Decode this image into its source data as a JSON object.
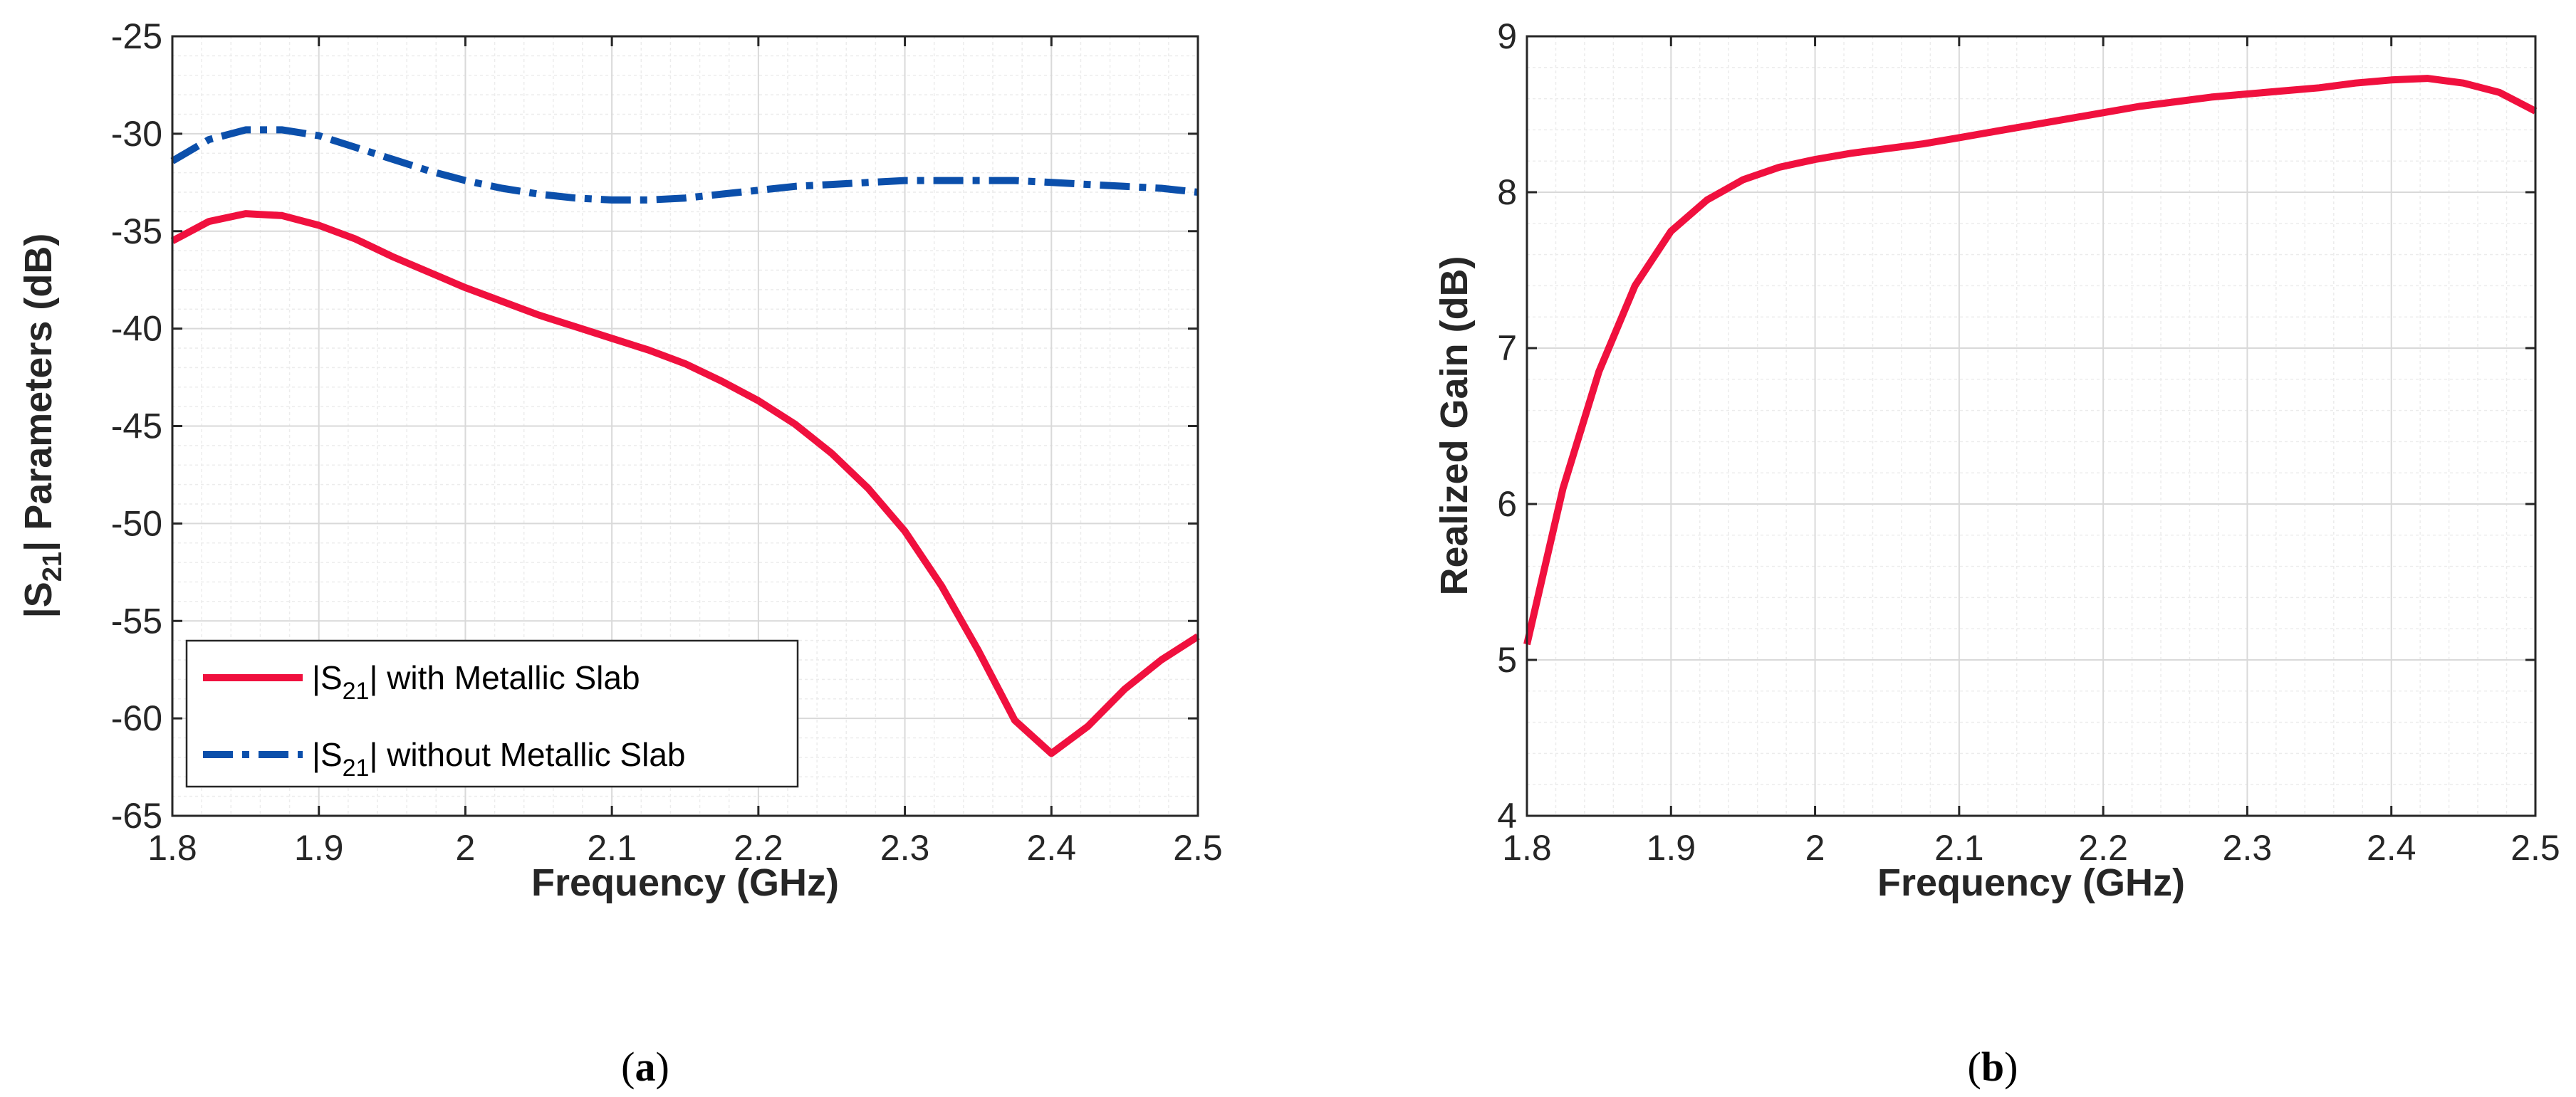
{
  "chart_data": [
    {
      "type": "line",
      "id": "a",
      "caption_paren_open": "(",
      "caption_letter": "a",
      "caption_paren_close": ")",
      "xlabel": "Frequency (GHz)",
      "ylabel_prefix": "|S",
      "ylabel_sub": "21",
      "ylabel_suffix": "| Parameters (dB)",
      "xlim": [
        1.8,
        2.5
      ],
      "ylim": [
        -65,
        -25
      ],
      "xticks": [
        1.8,
        1.9,
        2,
        2.1,
        2.2,
        2.3,
        2.4,
        2.5
      ],
      "xtick_labels": [
        "1.8",
        "1.9",
        "2",
        "2.1",
        "2.2",
        "2.3",
        "2.4",
        "2.5"
      ],
      "yticks": [
        -65,
        -60,
        -55,
        -50,
        -45,
        -40,
        -35,
        -30,
        -25
      ],
      "ytick_labels": [
        "-65",
        "-60",
        "-55",
        "-50",
        "-45",
        "-40",
        "-35",
        "-30",
        "-25"
      ],
      "grid": true,
      "minor_grid": true,
      "legend_location": "bottom-left",
      "series": [
        {
          "name": "|S21| with Metallic Slab",
          "legend_prefix": "|S",
          "legend_sub": "21",
          "legend_suffix": "| with Metallic Slab",
          "color": "#f0103e",
          "style": "solid",
          "x": [
            1.8,
            1.825,
            1.85,
            1.875,
            1.9,
            1.925,
            1.95,
            1.975,
            2.0,
            2.025,
            2.05,
            2.075,
            2.1,
            2.125,
            2.15,
            2.175,
            2.2,
            2.225,
            2.25,
            2.275,
            2.3,
            2.325,
            2.35,
            2.375,
            2.4,
            2.425,
            2.45,
            2.475,
            2.5
          ],
          "y": [
            -35.5,
            -34.5,
            -34.1,
            -34.2,
            -34.7,
            -35.4,
            -36.3,
            -37.1,
            -37.9,
            -38.6,
            -39.3,
            -39.9,
            -40.5,
            -41.1,
            -41.8,
            -42.7,
            -43.7,
            -44.9,
            -46.4,
            -48.2,
            -50.4,
            -53.2,
            -56.5,
            -60.1,
            -61.8,
            -60.4,
            -58.5,
            -57.0,
            -55.8
          ]
        },
        {
          "name": "|S21| without Metallic Slab",
          "legend_prefix": "|S",
          "legend_sub": "21",
          "legend_suffix": "| without Metallic Slab",
          "color": "#0b4fab",
          "style": "dashdot",
          "x": [
            1.8,
            1.825,
            1.85,
            1.875,
            1.9,
            1.925,
            1.95,
            1.975,
            2.0,
            2.025,
            2.05,
            2.075,
            2.1,
            2.125,
            2.15,
            2.175,
            2.2,
            2.225,
            2.25,
            2.275,
            2.3,
            2.325,
            2.35,
            2.375,
            2.4,
            2.425,
            2.45,
            2.475,
            2.5
          ],
          "y": [
            -31.4,
            -30.3,
            -29.8,
            -29.8,
            -30.1,
            -30.7,
            -31.3,
            -31.9,
            -32.4,
            -32.8,
            -33.1,
            -33.3,
            -33.4,
            -33.4,
            -33.3,
            -33.1,
            -32.9,
            -32.7,
            -32.6,
            -32.5,
            -32.4,
            -32.4,
            -32.4,
            -32.4,
            -32.5,
            -32.6,
            -32.7,
            -32.8,
            -33.0
          ]
        }
      ]
    },
    {
      "type": "line",
      "id": "b",
      "caption_paren_open": "(",
      "caption_letter": "b",
      "caption_paren_close": ")",
      "xlabel": "Frequency (GHz)",
      "ylabel": "Realized Gain (dB)",
      "xlim": [
        1.8,
        2.5
      ],
      "ylim": [
        4,
        9
      ],
      "xticks": [
        1.8,
        1.9,
        2,
        2.1,
        2.2,
        2.3,
        2.4,
        2.5
      ],
      "xtick_labels": [
        "1.8",
        "1.9",
        "2",
        "2.1",
        "2.2",
        "2.3",
        "2.4",
        "2.5"
      ],
      "yticks": [
        4,
        5,
        6,
        7,
        8,
        9
      ],
      "ytick_labels": [
        "4",
        "5",
        "6",
        "7",
        "8",
        "9"
      ],
      "grid": true,
      "minor_grid": true,
      "series": [
        {
          "name": "Realized Gain",
          "color": "#f0103e",
          "style": "solid",
          "x": [
            1.8,
            1.825,
            1.85,
            1.875,
            1.9,
            1.925,
            1.95,
            1.975,
            2.0,
            2.025,
            2.05,
            2.075,
            2.1,
            2.125,
            2.15,
            2.175,
            2.2,
            2.225,
            2.25,
            2.275,
            2.3,
            2.325,
            2.35,
            2.375,
            2.4,
            2.425,
            2.45,
            2.475,
            2.5
          ],
          "y": [
            5.1,
            6.1,
            6.85,
            7.4,
            7.75,
            7.95,
            8.08,
            8.16,
            8.21,
            8.25,
            8.28,
            8.31,
            8.35,
            8.39,
            8.43,
            8.47,
            8.51,
            8.55,
            8.58,
            8.61,
            8.63,
            8.65,
            8.67,
            8.7,
            8.72,
            8.73,
            8.7,
            8.64,
            8.52
          ]
        }
      ]
    }
  ]
}
